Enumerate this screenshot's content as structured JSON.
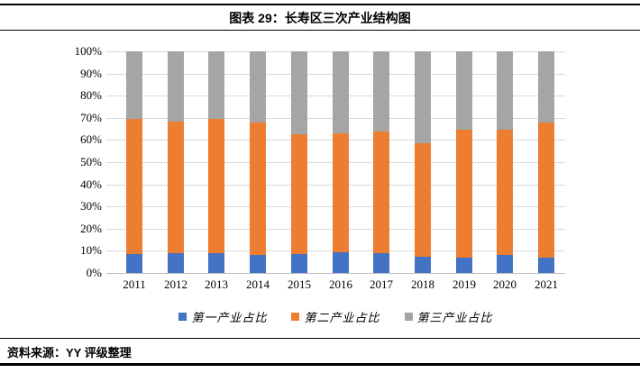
{
  "header": {
    "title": "图表 29：长寿区三次产业结构图"
  },
  "footer": {
    "source": "资料来源：YY 评级整理"
  },
  "colors": {
    "series1": "#4472C4",
    "series2": "#ED7D31",
    "series3": "#A5A5A5",
    "gridline": "#D9D9D9",
    "rule": "#000000"
  },
  "chart_data": {
    "type": "bar",
    "stacked": true,
    "percent": true,
    "title": "长寿区三次产业结构图",
    "categories": [
      "2011",
      "2012",
      "2013",
      "2014",
      "2015",
      "2016",
      "2017",
      "2018",
      "2019",
      "2020",
      "2021"
    ],
    "series": [
      {
        "name": "第一产业占比",
        "color": "#4472C4",
        "values": [
          8.5,
          9,
          9,
          8,
          8.5,
          9.5,
          9,
          7.5,
          7,
          8,
          7
        ]
      },
      {
        "name": "第二产业占比",
        "color": "#ED7D31",
        "values": [
          61,
          59.5,
          60.5,
          60,
          54,
          53.5,
          55,
          51,
          57.5,
          56.5,
          61
        ]
      },
      {
        "name": "第三产业占比",
        "color": "#A5A5A5",
        "values": [
          30.5,
          31.5,
          30.5,
          32,
          37.5,
          37,
          36,
          41.5,
          35.5,
          35.5,
          32
        ]
      }
    ],
    "yticks": [
      "100%",
      "90%",
      "80%",
      "70%",
      "60%",
      "50%",
      "40%",
      "30%",
      "20%",
      "10%",
      "0%"
    ],
    "ylim": [
      0,
      100
    ],
    "ylabel": "",
    "xlabel": "",
    "grid": true,
    "legend_position": "bottom"
  }
}
